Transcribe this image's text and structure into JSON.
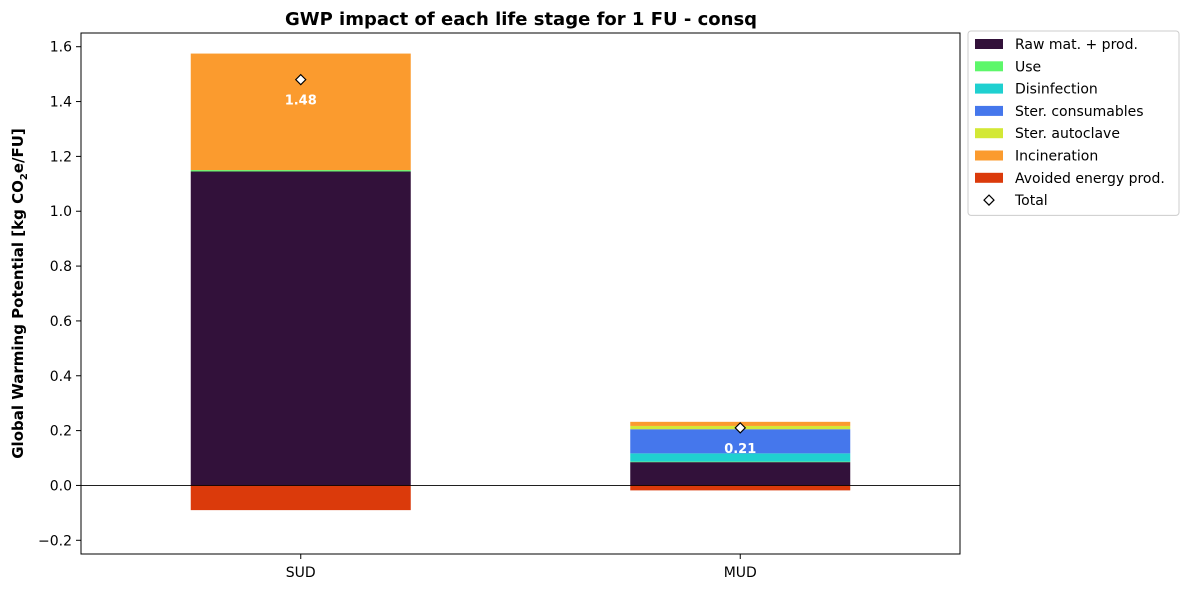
{
  "chart_data": {
    "type": "bar",
    "stacked": true,
    "title": "GWP impact of each life stage for 1 FU - consq",
    "ylabel_prefix": "Global Warming Potential [kg CO",
    "ylabel_sub": "2",
    "ylabel_suffix": "e/FU]",
    "xlabel": "",
    "categories": [
      "SUD",
      "MUD"
    ],
    "ylim": [
      -0.25,
      1.65
    ],
    "yticks": [
      -0.2,
      0.0,
      0.2,
      0.4,
      0.6,
      0.8,
      1.0,
      1.2,
      1.4,
      1.6
    ],
    "ytick_labels": [
      "−0.2",
      "0.0",
      "0.2",
      "0.4",
      "0.6",
      "0.8",
      "1.0",
      "1.2",
      "1.4",
      "1.6"
    ],
    "grid": false,
    "zero_line": true,
    "legend_position": "outside-top-right",
    "series": [
      {
        "name": "Raw mat. + prod.",
        "color": "#32113a",
        "values": [
          1.145,
          0.085
        ]
      },
      {
        "name": "Use",
        "color": "#5df76a",
        "values": [
          0.005,
          0.002
        ]
      },
      {
        "name": "Disinfection",
        "color": "#1fd0d0",
        "values": [
          0.0,
          0.03
        ]
      },
      {
        "name": "Ster. consumables",
        "color": "#4577ec",
        "values": [
          0.0,
          0.088
        ]
      },
      {
        "name": "Ster. autoclave",
        "color": "#d3e836",
        "values": [
          0.0,
          0.012
        ]
      },
      {
        "name": "Incineration",
        "color": "#fb9b2e",
        "values": [
          0.425,
          0.015
        ]
      },
      {
        "name": "Avoided energy prod.",
        "color": "#db3a0b",
        "values": [
          -0.09,
          -0.018
        ]
      }
    ],
    "total": {
      "name": "Total",
      "values": [
        1.48,
        0.21
      ],
      "labels": [
        "1.48",
        "0.21"
      ]
    }
  }
}
